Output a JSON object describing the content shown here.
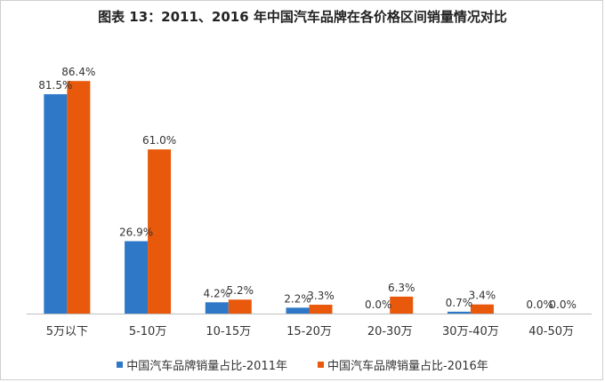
{
  "chart_data": {
    "type": "bar",
    "title": "图表 13：2011、2016 年中国汽车品牌在各价格区间销量情况对比",
    "categories": [
      "5万以下",
      "5-10万",
      "10-15万",
      "15-20万",
      "20-30万",
      "30万-40万",
      "40-50万"
    ],
    "series": [
      {
        "name": "中国汽车品牌销量占比-2011年",
        "color": "#2e78c7",
        "values": [
          81.5,
          26.9,
          4.2,
          2.2,
          0.0,
          0.7,
          0.0
        ],
        "labels": [
          "81.5%",
          "26.9%",
          "4.2%",
          "2.2%",
          "0.0%",
          "0.7%",
          "0.0%"
        ]
      },
      {
        "name": "中国汽车品牌销量占比-2016年",
        "color": "#e8590c",
        "values": [
          86.4,
          61.0,
          5.2,
          3.3,
          6.3,
          3.4,
          0.0
        ],
        "labels": [
          "86.4%",
          "61.0%",
          "5.2%",
          "3.3%",
          "6.3%",
          "3.4%",
          "0.0%"
        ]
      }
    ],
    "ylim": [
      0,
      100
    ],
    "grid": false,
    "legend_position": "bottom"
  }
}
